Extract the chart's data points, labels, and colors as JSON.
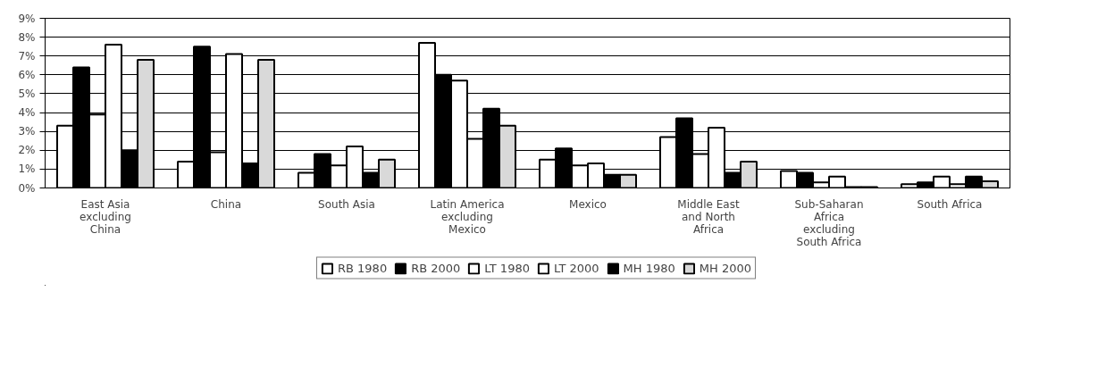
{
  "chart_data": {
    "type": "bar",
    "categories": [
      "East Asia excluding China",
      "China",
      "South Asia",
      "Latin America excluding Mexico",
      "Mexico",
      "Middle East and North Africa",
      "Sub-Saharan Africa excluding South Africa",
      "South Africa"
    ],
    "series": [
      {
        "name": "RB 1980",
        "color": "#ffffff",
        "values": [
          3.3,
          1.4,
          0.8,
          7.7,
          1.5,
          2.7,
          0.9,
          0.2
        ]
      },
      {
        "name": "RB 2000",
        "color": "#000000",
        "values": [
          6.4,
          7.5,
          1.8,
          6.0,
          2.1,
          3.7,
          0.8,
          0.3
        ]
      },
      {
        "name": "LT 1980",
        "color": "#ffffff",
        "values": [
          3.9,
          1.9,
          1.2,
          5.7,
          1.2,
          1.8,
          0.3,
          0.6
        ]
      },
      {
        "name": "LT 2000",
        "color": "#ffffff",
        "values": [
          7.6,
          7.1,
          2.2,
          2.6,
          1.3,
          3.2,
          0.6,
          0.2
        ]
      },
      {
        "name": "MH 1980",
        "color": "#000000",
        "values": [
          2.0,
          1.3,
          0.8,
          4.2,
          0.7,
          0.8,
          0.05,
          0.6
        ]
      },
      {
        "name": "MH 2000",
        "color": "#d9d9d9",
        "values": [
          6.8,
          6.8,
          1.5,
          3.3,
          0.7,
          1.4,
          0.05,
          0.35
        ]
      }
    ],
    "ylim": [
      0,
      9
    ],
    "yticks": [
      {
        "value": 0,
        "label": "0%"
      },
      {
        "value": 1,
        "label": "1%"
      },
      {
        "value": 2,
        "label": "2%"
      },
      {
        "value": 3,
        "label": "3%"
      },
      {
        "value": 4,
        "label": "4%"
      },
      {
        "value": 5,
        "label": "5%"
      },
      {
        "value": 6,
        "label": "6%"
      },
      {
        "value": 7,
        "label": "7%"
      },
      {
        "value": 8,
        "label": "8%"
      },
      {
        "value": 9,
        "label": "9%"
      }
    ],
    "grid": "y",
    "legend": "bottom"
  }
}
